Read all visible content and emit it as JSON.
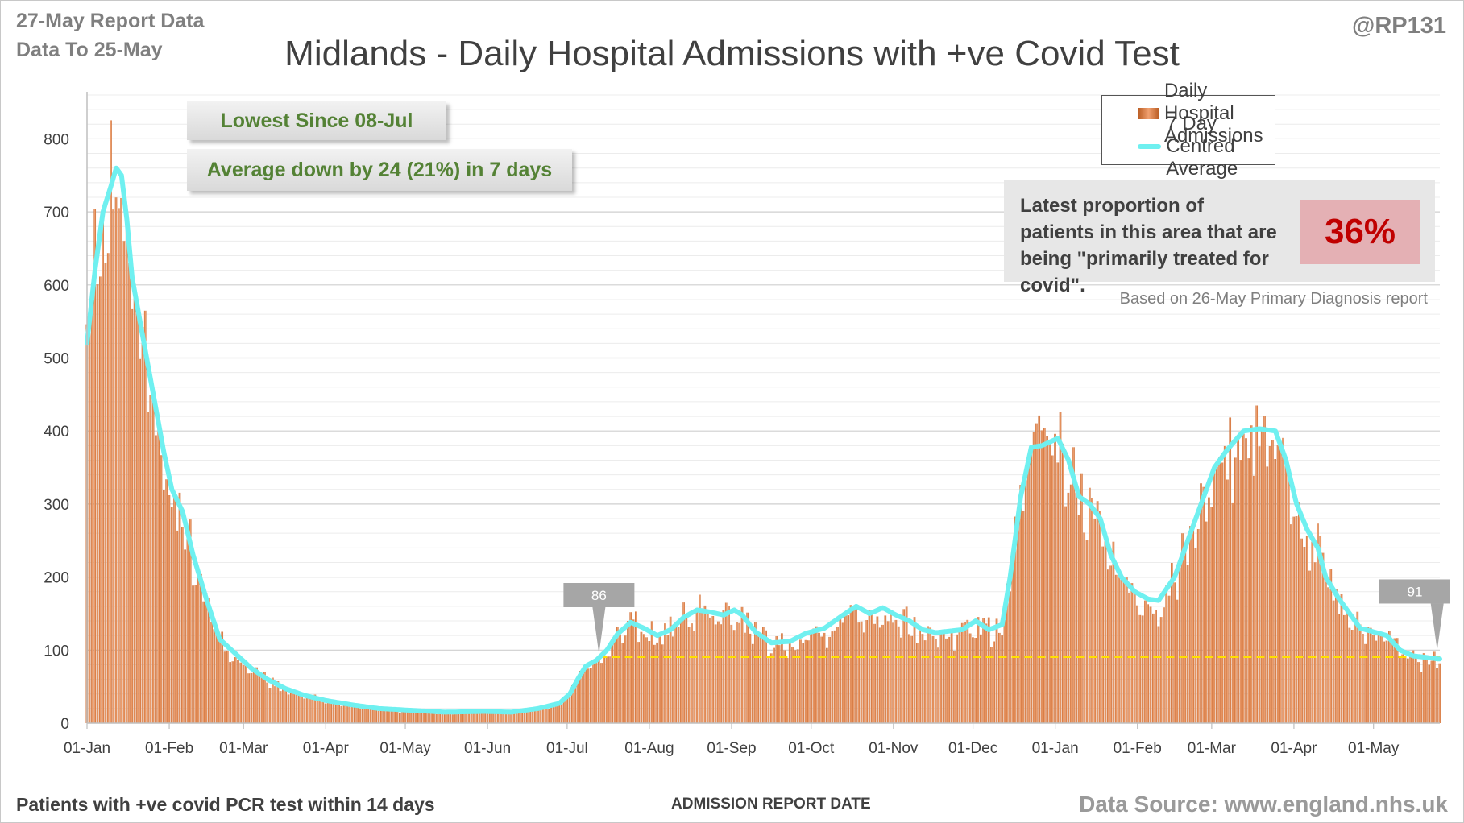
{
  "header": {
    "report_line": "27-May Report Data",
    "data_to_line": "Data To 25-May",
    "handle": "@RP131"
  },
  "title": "Midlands - Daily Hospital Admissions with +ve Covid Test",
  "callouts": {
    "lowest_since": "Lowest Since 08-Jul",
    "average_change": "Average down by 24 (21%) in 7 days"
  },
  "legend": {
    "bars_label": "Daily Hospital Admissions",
    "line_label": "7 Day Centred Average"
  },
  "info": {
    "text": "Latest proportion of patients in this area that are being \"primarily treated for covid\".",
    "percent": "36%",
    "based_on": "Based on 26-May Primary Diagnosis report"
  },
  "footer": {
    "left": "Patients with +ve covid PCR test within 14 days",
    "xlabel": "ADMISSION REPORT DATE",
    "source": "Data Source: www.england.nhs.uk"
  },
  "colors": {
    "bar": "#c8642a",
    "bar_light": "#f3a97a",
    "avg_line": "#6ff0f0",
    "reference_line": "#ffe000",
    "callout_text": "#548235",
    "percent_text": "#c00000",
    "grid": "#d9d9d9"
  },
  "chart_data": {
    "type": "bar",
    "title": "Midlands - Daily Hospital Admissions with +ve Covid Test",
    "xlabel": "ADMISSION REPORT DATE",
    "ylabel": "",
    "ylim": [
      0,
      860
    ],
    "yticks": [
      0,
      100,
      200,
      300,
      400,
      500,
      600,
      700,
      800
    ],
    "grid": true,
    "legend_position": "top-right",
    "x_range_days": [
      0,
      510
    ],
    "xtick_labels": [
      "01-Jan",
      "01-Feb",
      "01-Mar",
      "01-Apr",
      "01-May",
      "01-Jun",
      "01-Jul",
      "01-Aug",
      "01-Sep",
      "01-Oct",
      "01-Nov",
      "01-Dec",
      "01-Jan",
      "01-Feb",
      "01-Mar",
      "01-Apr",
      "01-May"
    ],
    "xtick_days": [
      0,
      31,
      59,
      90,
      120,
      151,
      181,
      212,
      243,
      273,
      304,
      334,
      365,
      396,
      424,
      455,
      485
    ],
    "average_anchor_days": [
      0,
      3,
      6,
      9,
      11,
      13,
      15,
      17,
      20,
      23,
      26,
      29,
      32,
      36,
      40,
      45,
      50,
      56,
      62,
      68,
      75,
      82,
      90,
      100,
      110,
      120,
      135,
      150,
      160,
      170,
      178,
      182,
      185,
      188,
      192,
      196,
      200,
      205,
      210,
      215,
      220,
      225,
      230,
      235,
      240,
      244,
      247,
      252,
      258,
      265,
      271,
      278,
      285,
      290,
      295,
      300,
      305,
      310,
      315,
      320,
      325,
      330,
      335,
      340,
      345,
      348,
      352,
      356,
      360,
      363,
      366,
      370,
      374,
      378,
      382,
      386,
      390,
      395,
      400,
      404,
      410,
      416,
      420,
      425,
      430,
      436,
      442,
      448,
      452,
      456,
      460,
      464,
      467,
      472,
      476,
      480,
      485,
      490,
      495,
      500,
      505,
      509
    ],
    "average_anchor_values": [
      520,
      620,
      700,
      735,
      760,
      750,
      690,
      610,
      550,
      490,
      430,
      370,
      320,
      290,
      230,
      170,
      115,
      95,
      75,
      60,
      47,
      38,
      31,
      25,
      20,
      18,
      15,
      16,
      15,
      20,
      27,
      40,
      60,
      78,
      86,
      100,
      122,
      138,
      130,
      120,
      128,
      145,
      155,
      152,
      148,
      155,
      148,
      125,
      110,
      112,
      123,
      130,
      148,
      160,
      150,
      158,
      148,
      140,
      128,
      124,
      126,
      128,
      140,
      128,
      135,
      200,
      310,
      378,
      380,
      385,
      390,
      360,
      310,
      300,
      280,
      230,
      200,
      180,
      170,
      168,
      200,
      260,
      300,
      350,
      375,
      400,
      403,
      400,
      360,
      300,
      265,
      240,
      200,
      170,
      150,
      130,
      125,
      120,
      100,
      92,
      90,
      88
    ],
    "reference_line_value": 91,
    "labels": [
      {
        "text": "86",
        "day": 193,
        "value": 86
      },
      {
        "text": "91",
        "day": 509,
        "value": 91
      }
    ]
  }
}
